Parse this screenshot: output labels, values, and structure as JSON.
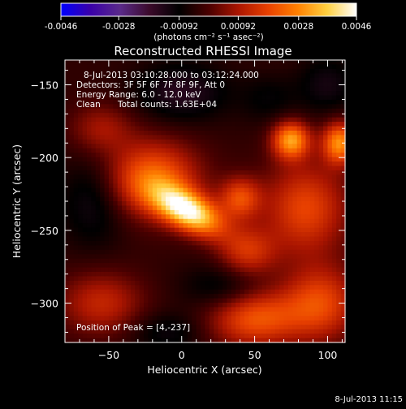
{
  "window": {
    "timestamp": "8-Jul-2013 11:15"
  },
  "colorbar": {
    "tick_labels": [
      "-0.0046",
      "-0.0028",
      "-0.00092",
      "0.00092",
      "0.0028",
      "0.0046"
    ],
    "range": [
      -0.0046,
      0.0046
    ],
    "units": "(photons cm⁻² s⁻¹ asec⁻²)"
  },
  "info": {
    "time_range": "8-Jul-2013 03:10:28.000 to 03:12:24.000",
    "detectors": "Detectors: 3F 5F 6F 7F 8F 9F, Att 0",
    "energy_range": "Energy Range: 6.0 - 12.0 keV",
    "method": "Clean",
    "total_counts": "Total counts: 1.63E+04",
    "peak_position": "Position of Peak = [4,-237]"
  },
  "chart_data": {
    "type": "heatmap",
    "title": "Reconstructed RHESSI Image",
    "xlabel": "Heliocentric X (arcsec)",
    "ylabel": "Heliocentric Y (arcsec)",
    "xlim": [
      -80,
      112
    ],
    "ylim": [
      -327,
      -133
    ],
    "x_ticks": [
      -50,
      0,
      50,
      100
    ],
    "y_ticks": [
      -150,
      -200,
      -250,
      -300
    ],
    "x_tick_labels": [
      "−50",
      "0",
      "50",
      "100"
    ],
    "y_tick_labels": [
      "−150",
      "−200",
      "−250",
      "−300"
    ],
    "peak": {
      "x": 4,
      "y": -237
    },
    "colormap": [
      "#0000ff",
      "#3a00a8",
      "#5a2a8a",
      "#3b0a2a",
      "#000000",
      "#4a0000",
      "#aa1500",
      "#e84000",
      "#ff8000",
      "#ffd040",
      "#ffffff"
    ],
    "sources": [
      {
        "x": 5,
        "y": -237,
        "amp": 0.0046,
        "sx": 18,
        "sy": 9,
        "rot": -28
      },
      {
        "x": -20,
        "y": -215,
        "amp": 0.0028,
        "sx": 22,
        "sy": 18,
        "rot": 0
      },
      {
        "x": 40,
        "y": -228,
        "amp": 0.0022,
        "sx": 10,
        "sy": 10,
        "rot": 0
      },
      {
        "x": 75,
        "y": -188,
        "amp": 0.0034,
        "sx": 9,
        "sy": 9,
        "rot": 0
      },
      {
        "x": 108,
        "y": -190,
        "amp": 0.0032,
        "sx": 8,
        "sy": 10,
        "rot": 0
      },
      {
        "x": 85,
        "y": -235,
        "amp": 0.0022,
        "sx": 20,
        "sy": 22,
        "rot": 0
      },
      {
        "x": 45,
        "y": -265,
        "amp": 0.0018,
        "sx": 14,
        "sy": 12,
        "rot": 0
      },
      {
        "x": 50,
        "y": -310,
        "amp": 0.0025,
        "sx": 22,
        "sy": 14,
        "rot": 0
      },
      {
        "x": 95,
        "y": -300,
        "amp": 0.0022,
        "sx": 18,
        "sy": 18,
        "rot": 0
      },
      {
        "x": -55,
        "y": -300,
        "amp": 0.0016,
        "sx": 20,
        "sy": 15,
        "rot": 0
      },
      {
        "x": -55,
        "y": -180,
        "amp": 0.0012,
        "sx": 15,
        "sy": 12,
        "rot": 0
      },
      {
        "x": 0,
        "y": -155,
        "amp": -0.0012,
        "sx": 22,
        "sy": 14,
        "rot": 0
      },
      {
        "x": -60,
        "y": -230,
        "amp": -0.001,
        "sx": 16,
        "sy": 22,
        "rot": 0
      },
      {
        "x": 30,
        "y": -290,
        "amp": -0.001,
        "sx": 20,
        "sy": 12,
        "rot": 0
      },
      {
        "x": 100,
        "y": -150,
        "amp": -0.0009,
        "sx": 14,
        "sy": 14,
        "rot": 0
      },
      {
        "x": -10,
        "y": -320,
        "amp": -0.0008,
        "sx": 18,
        "sy": 10,
        "rot": 0
      },
      {
        "x": 60,
        "y": -160,
        "amp": -0.0006,
        "sx": 14,
        "sy": 12,
        "rot": 0
      }
    ]
  }
}
